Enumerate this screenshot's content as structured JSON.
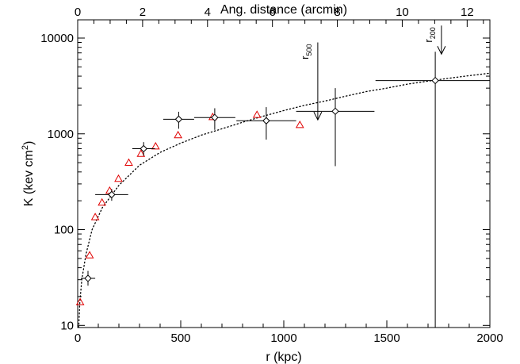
{
  "chart_data": {
    "type": "scatter",
    "title": "",
    "xlabel": "r (kpc)",
    "ylabel": "K (kev cm²)",
    "ylabel_main": "K (kev cm",
    "ylabel_sup": "2",
    "ylabel_close": ")",
    "x2label": "Ang. distance (arcmin)",
    "xlim": [
      0,
      2000
    ],
    "ylim": [
      9.5,
      15500
    ],
    "yscale": "log",
    "x2lim": [
      0,
      12.7
    ],
    "x_ticks": [
      0,
      500,
      1000,
      1500,
      2000
    ],
    "x_tick_labels": [
      "0",
      "500",
      "1000",
      "1500",
      "2000"
    ],
    "y_ticks": [
      10,
      100,
      1000,
      10000
    ],
    "y_tick_labels": [
      "10",
      "100",
      "1000",
      "10000"
    ],
    "x2_ticks": [
      0,
      2,
      4,
      6,
      8,
      10,
      12
    ],
    "x2_tick_labels": [
      "0",
      "2",
      "4",
      "6",
      "8",
      "10",
      "12"
    ],
    "grid": false,
    "series": [
      {
        "style": "black diamonds with error bars",
        "color": "#000000",
        "points": [
          {
            "x": 50,
            "y": 31,
            "xerr": [
              35,
              35
            ],
            "yerr": [
              26,
              37
            ]
          },
          {
            "x": 165,
            "y": 232,
            "xerr": [
              80,
              80
            ],
            "yerr": [
              200,
              265
            ]
          },
          {
            "x": 320,
            "y": 700,
            "xerr": [
              55,
              55
            ],
            "yerr": [
              590,
              820
            ]
          },
          {
            "x": 490,
            "y": 1420,
            "xerr": [
              75,
              75
            ],
            "yerr": [
              1130,
              1700
            ]
          },
          {
            "x": 665,
            "y": 1480,
            "xerr": [
              100,
              100
            ],
            "yerr": [
              1100,
              1850
            ]
          },
          {
            "x": 915,
            "y": 1370,
            "xerr": [
              145,
              145
            ],
            "yerr": [
              870,
              1900
            ]
          },
          {
            "x": 1250,
            "y": 1720,
            "xerr": [
              190,
              190
            ],
            "yerr": [
              460,
              3000
            ]
          },
          {
            "x": 1735,
            "y": 3600,
            "xerr": [
              290,
              290
            ],
            "yerr": [
              9.5,
              7200
            ]
          }
        ]
      },
      {
        "style": "red open triangles",
        "color": "#e00000",
        "points": [
          {
            "x": 12,
            "y": 17.5
          },
          {
            "x": 58,
            "y": 54
          },
          {
            "x": 85,
            "y": 135
          },
          {
            "x": 118,
            "y": 192
          },
          {
            "x": 155,
            "y": 255
          },
          {
            "x": 198,
            "y": 340
          },
          {
            "x": 248,
            "y": 500
          },
          {
            "x": 307,
            "y": 620
          },
          {
            "x": 378,
            "y": 740
          },
          {
            "x": 487,
            "y": 970
          },
          {
            "x": 655,
            "y": 1500
          },
          {
            "x": 870,
            "y": 1580
          },
          {
            "x": 1078,
            "y": 1240
          }
        ]
      }
    ],
    "fit_line": {
      "style": "dotted",
      "color": "#000000",
      "points": [
        [
          5,
          9.5
        ],
        [
          10,
          17
        ],
        [
          20,
          30
        ],
        [
          40,
          55
        ],
        [
          70,
          100
        ],
        [
          120,
          170
        ],
        [
          200,
          290
        ],
        [
          300,
          470
        ],
        [
          400,
          640
        ],
        [
          500,
          800
        ],
        [
          600,
          970
        ],
        [
          700,
          1130
        ],
        [
          800,
          1320
        ],
        [
          900,
          1530
        ],
        [
          1000,
          1750
        ],
        [
          1100,
          1980
        ],
        [
          1200,
          2200
        ],
        [
          1300,
          2470
        ],
        [
          1400,
          2760
        ],
        [
          1500,
          3000
        ],
        [
          1600,
          3300
        ],
        [
          1700,
          3550
        ],
        [
          1800,
          3800
        ],
        [
          1900,
          4050
        ],
        [
          2000,
          4300
        ]
      ]
    },
    "annotations": [
      {
        "label": "r",
        "sub": "500",
        "x": 1165,
        "y_top": 9000,
        "y_bottom": 1400
      },
      {
        "label": "r",
        "sub": "200",
        "x": 1765,
        "y_top": 13500,
        "y_bottom": 6800
      }
    ]
  }
}
